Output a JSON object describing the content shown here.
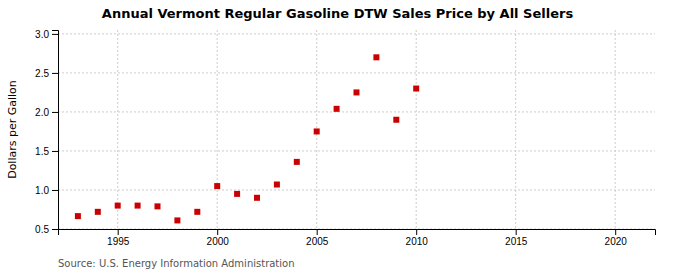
{
  "chart_data": {
    "type": "scatter",
    "title": "Annual Vermont Regular Gasoline DTW Sales Price by All Sellers",
    "ylabel": "Dollars per Gallon",
    "source": "Source: U.S. Energy Information Administration",
    "x": [
      1993,
      1994,
      1995,
      1996,
      1997,
      1998,
      1999,
      2000,
      2001,
      2002,
      2003,
      2004,
      2005,
      2006,
      2007,
      2008,
      2009,
      2010
    ],
    "values": [
      0.665,
      0.72,
      0.8,
      0.8,
      0.79,
      0.61,
      0.72,
      1.05,
      0.95,
      0.9,
      1.07,
      1.36,
      1.75,
      2.04,
      2.25,
      2.7,
      1.9,
      2.3
    ],
    "color": "#cc0000",
    "marker": "square",
    "xlim": [
      1992,
      2022
    ],
    "ylim": [
      0.5,
      3.05
    ],
    "xticks": [
      1995,
      2000,
      2005,
      2010,
      2015,
      2020
    ],
    "yticks": [
      0.5,
      {
        "value": 1.0,
        "label": "1.0"
      },
      1.5,
      {
        "value": 2.0,
        "label": "2.0"
      },
      2.5,
      {
        "value": 3.0,
        "label": "3.0"
      }
    ],
    "grid": true
  }
}
